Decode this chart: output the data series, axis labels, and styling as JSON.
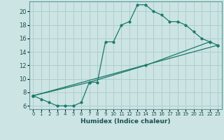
{
  "xlabel": "Humidex (Indice chaleur)",
  "background_color": "#cde4e4",
  "line_color": "#1a7a6a",
  "grid_color": "#aecece",
  "xlim": [
    -0.5,
    23.5
  ],
  "ylim": [
    5.5,
    21.5
  ],
  "xticks": [
    0,
    1,
    2,
    3,
    4,
    5,
    6,
    7,
    8,
    9,
    10,
    11,
    12,
    13,
    14,
    15,
    16,
    17,
    18,
    19,
    20,
    21,
    22,
    23
  ],
  "yticks": [
    6,
    8,
    10,
    12,
    14,
    16,
    18,
    20
  ],
  "line1_x": [
    0,
    1,
    2,
    3,
    4,
    5,
    6,
    7,
    8,
    9,
    10,
    11,
    12,
    13,
    14,
    15,
    16,
    17,
    18,
    19,
    20,
    21,
    22
  ],
  "line1_y": [
    7.5,
    7.0,
    6.5,
    6.0,
    6.0,
    6.0,
    6.5,
    9.5,
    9.5,
    15.5,
    15.5,
    18.0,
    18.5,
    21.0,
    21.0,
    20.0,
    19.5,
    18.5,
    18.5,
    18.0,
    17.0,
    16.0,
    15.5
  ],
  "line2_x": [
    0,
    7,
    14,
    22,
    23
  ],
  "line2_y": [
    7.5,
    9.5,
    12.0,
    15.5,
    15.0
  ],
  "line3_x": [
    0,
    23
  ],
  "line3_y": [
    7.5,
    15.0
  ]
}
